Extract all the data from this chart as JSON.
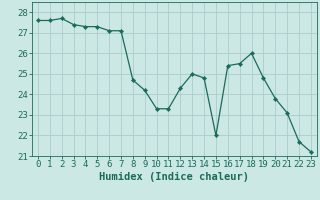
{
  "x": [
    0,
    1,
    2,
    3,
    4,
    5,
    6,
    7,
    8,
    9,
    10,
    11,
    12,
    13,
    14,
    15,
    16,
    17,
    18,
    19,
    20,
    21,
    22,
    23
  ],
  "y": [
    27.6,
    27.6,
    27.7,
    27.4,
    27.3,
    27.3,
    27.1,
    27.1,
    24.7,
    24.2,
    23.3,
    23.3,
    24.3,
    25.0,
    24.8,
    22.0,
    25.4,
    25.5,
    26.0,
    24.8,
    23.8,
    23.1,
    21.7,
    21.2
  ],
  "line_color": "#1a6b5a",
  "marker": "D",
  "marker_size": 2.2,
  "background_color": "#cce8e4",
  "grid_color": "#aacccc",
  "xlabel": "Humidex (Indice chaleur)",
  "xlim": [
    -0.5,
    23.5
  ],
  "ylim": [
    21.0,
    28.5
  ],
  "yticks": [
    21,
    22,
    23,
    24,
    25,
    26,
    27,
    28
  ],
  "xticks": [
    0,
    1,
    2,
    3,
    4,
    5,
    6,
    7,
    8,
    9,
    10,
    11,
    12,
    13,
    14,
    15,
    16,
    17,
    18,
    19,
    20,
    21,
    22,
    23
  ],
  "tick_color": "#1a6b5a",
  "label_fontsize": 7.5,
  "tick_fontsize": 6.5
}
